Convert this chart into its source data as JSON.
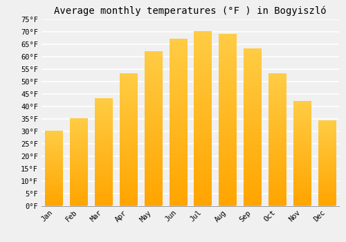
{
  "title": "Average monthly temperatures (°F ) in Bogyiszló",
  "months": [
    "Jan",
    "Feb",
    "Mar",
    "Apr",
    "May",
    "Jun",
    "Jul",
    "Aug",
    "Sep",
    "Oct",
    "Nov",
    "Dec"
  ],
  "values": [
    30,
    35,
    43,
    53,
    62,
    67,
    70,
    69,
    63,
    53,
    42,
    34
  ],
  "bar_color": "#FFB830",
  "bar_color_gradient_top": "#FFCC44",
  "bar_color_gradient_bottom": "#FFA500",
  "ylim": [
    0,
    75
  ],
  "yticks": [
    0,
    5,
    10,
    15,
    20,
    25,
    30,
    35,
    40,
    45,
    50,
    55,
    60,
    65,
    70,
    75
  ],
  "background_color": "#f0f0f0",
  "grid_color": "#ffffff",
  "title_fontsize": 10,
  "tick_fontsize": 7.5,
  "font_family": "monospace"
}
